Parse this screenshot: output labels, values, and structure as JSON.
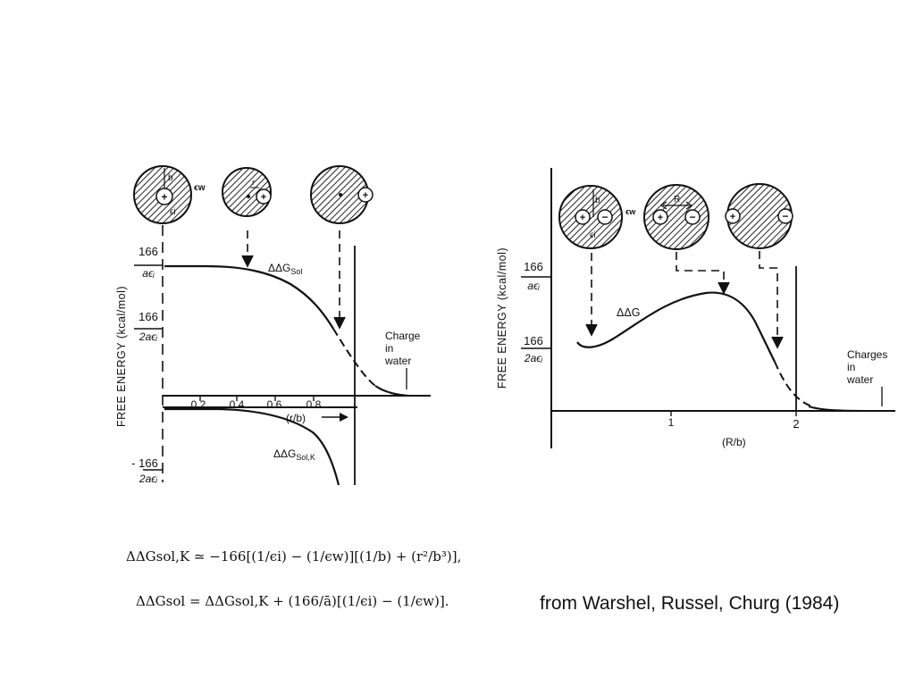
{
  "left_panel": {
    "y_axis_label": "FREE  ENERGY  (kcal/mol)",
    "ticks_y": [
      {
        "num": "166",
        "den": "aϵᵢ"
      },
      {
        "num": "166",
        "den": "2aϵᵢ"
      },
      {
        "num": "- 166",
        "den": "2aϵᵢ"
      }
    ],
    "ticks_x": [
      "0.2",
      "0.4",
      "0.6",
      "0.8"
    ],
    "x_axis_label": "(r/b)",
    "curve_labels": {
      "sol": "ΔΔG",
      "sol_sub": "Sol",
      "solk": "ΔΔG",
      "solk_sub": "Sol,K"
    },
    "note": [
      "Charge",
      "in",
      "water"
    ],
    "sphere_labels": {
      "b": "b",
      "ew": "ϵw",
      "ei": "ϵi",
      "r": "r"
    }
  },
  "right_panel": {
    "y_axis_label": "FREE  ENERGY  (kcal/mol)",
    "ticks_y": [
      {
        "num": "166",
        "den": "aϵᵢ"
      },
      {
        "num": "166",
        "den": "2aϵᵢ"
      }
    ],
    "ticks_x": [
      "1",
      "2"
    ],
    "x_axis_label": "(R/b)",
    "curve_label": "ΔΔG",
    "note": [
      "Charges",
      "in",
      "water"
    ],
    "sphere_labels": {
      "b": "b",
      "ew": "ϵw",
      "ei": "ϵi",
      "R": "R"
    }
  },
  "equations": {
    "eq1": "ΔΔGsol,K ≃ −166[(1/ϵi) − (1/ϵw)][(1/b) + (r²/b³)],",
    "eq2": "ΔΔGsol = ΔΔGsol,K + (166/ā)[(1/ϵi) − (1/ϵw)]."
  },
  "credit": "from Warshel, Russel, Churg (1984)"
}
